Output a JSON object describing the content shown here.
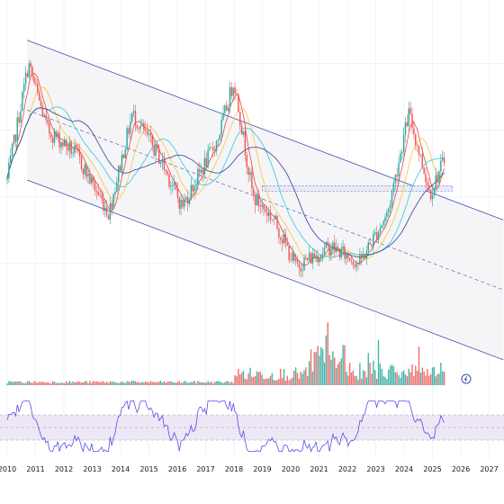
{
  "chart_data": {
    "type": "candlestick",
    "x_axis": {
      "type": "date",
      "tick_labels": [
        "2010",
        "2011",
        "2012",
        "2013",
        "2014",
        "2015",
        "2016",
        "2017",
        "2018",
        "2019",
        "2020",
        "2021",
        "2022",
        "2023",
        "2024",
        "2025",
        "2026",
        "2027"
      ]
    },
    "price_panel": {
      "y_axis_labels": "none visible",
      "series": [
        {
          "kind": "candles",
          "approx_close_by_year": [
            {
              "x": "2010-01",
              "y": 0.5
            },
            {
              "x": "2010-10",
              "y": 0.85
            },
            {
              "x": "2011-06",
              "y": 0.65
            },
            {
              "x": "2012-06",
              "y": 0.58
            },
            {
              "x": "2013-08",
              "y": 0.4
            },
            {
              "x": "2014-06",
              "y": 0.7
            },
            {
              "x": "2015-06",
              "y": 0.56
            },
            {
              "x": "2016-03",
              "y": 0.42
            },
            {
              "x": "2017-06",
              "y": 0.62
            },
            {
              "x": "2018-01",
              "y": 0.8
            },
            {
              "x": "2018-09",
              "y": 0.45
            },
            {
              "x": "2019-06",
              "y": 0.38
            },
            {
              "x": "2020-03",
              "y": 0.24
            },
            {
              "x": "2021-06",
              "y": 0.3
            },
            {
              "x": "2022-06",
              "y": 0.25
            },
            {
              "x": "2023-06",
              "y": 0.4
            },
            {
              "x": "2024-03",
              "y": 0.7
            },
            {
              "x": "2024-12",
              "y": 0.46
            },
            {
              "x": "2025-06",
              "y": 0.56
            }
          ]
        },
        {
          "kind": "moving-average",
          "color": "#e53935"
        },
        {
          "kind": "moving-average",
          "color": "#fbc02d"
        },
        {
          "kind": "moving-average",
          "color": "#26c6da"
        },
        {
          "kind": "moving-average",
          "color": "#283593"
        }
      ],
      "annotations": [
        {
          "kind": "descending-channel",
          "color": "#3f51b5"
        },
        {
          "kind": "horizontal-band",
          "color": "#3f51b5"
        }
      ]
    },
    "volume_panel": {
      "kind": "bars",
      "colors": {
        "up": "#26a69a",
        "down": "#ef5350"
      }
    },
    "oscillator_panel": {
      "kind": "rsi-like",
      "line_color": "#5c4ee5",
      "band_fill": "#ede7f6",
      "levels": [
        70,
        50,
        30
      ],
      "range": [
        0,
        100
      ]
    }
  },
  "ui": {
    "event_marker_icon": "lightning-icon",
    "colors": {
      "up": "#26a69a",
      "down": "#ef5350",
      "channel": "#3f51b5",
      "rsi": "#5c4ee5"
    }
  }
}
